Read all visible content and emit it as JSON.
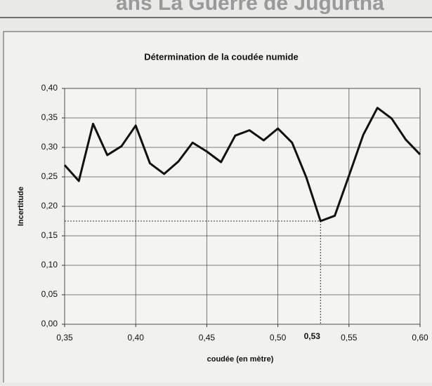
{
  "page_header": "ans La Guerre de Jugurtha",
  "chart_data": {
    "type": "line",
    "title": "Détermination de la coudée numide",
    "x_label": "coudée (en mètre)",
    "y_label": "Incertitude",
    "x": [
      0.35,
      0.36,
      0.37,
      0.38,
      0.39,
      0.4,
      0.41,
      0.42,
      0.43,
      0.44,
      0.45,
      0.46,
      0.47,
      0.48,
      0.49,
      0.5,
      0.51,
      0.52,
      0.53,
      0.54,
      0.55,
      0.56,
      0.57,
      0.58,
      0.59,
      0.6
    ],
    "values": [
      0.27,
      0.243,
      0.34,
      0.287,
      0.302,
      0.337,
      0.273,
      0.255,
      0.276,
      0.308,
      0.293,
      0.275,
      0.32,
      0.329,
      0.312,
      0.332,
      0.308,
      0.249,
      0.175,
      0.184,
      0.252,
      0.321,
      0.367,
      0.349,
      0.313,
      0.288
    ],
    "color": "#111111",
    "xlim": [
      0.35,
      0.6
    ],
    "ylim": [
      0,
      0.4
    ],
    "xticks": [
      {
        "value": 0.35,
        "label": "0,35"
      },
      {
        "value": 0.4,
        "label": "0,40"
      },
      {
        "value": 0.45,
        "label": "0,45"
      },
      {
        "value": 0.5,
        "label": "0,50"
      },
      {
        "value": 0.55,
        "label": "0,55"
      },
      {
        "value": 0.6,
        "label": "0,60"
      }
    ],
    "yticks": [
      {
        "value": 0,
        "label": "0,00"
      },
      {
        "value": 0.05,
        "label": "0,05"
      },
      {
        "value": 0.1,
        "label": "0,10"
      },
      {
        "value": 0.15,
        "label": "0,15"
      },
      {
        "value": 0.2,
        "label": "0,20"
      },
      {
        "value": 0.25,
        "label": "0,25"
      },
      {
        "value": 0.3,
        "label": "0,30"
      },
      {
        "value": 0.35,
        "label": "0,35"
      },
      {
        "value": 0.4,
        "label": "0,40"
      }
    ],
    "grid": true,
    "annotation": {
      "x": 0.53,
      "y": 0.175,
      "label": "0,53"
    }
  }
}
